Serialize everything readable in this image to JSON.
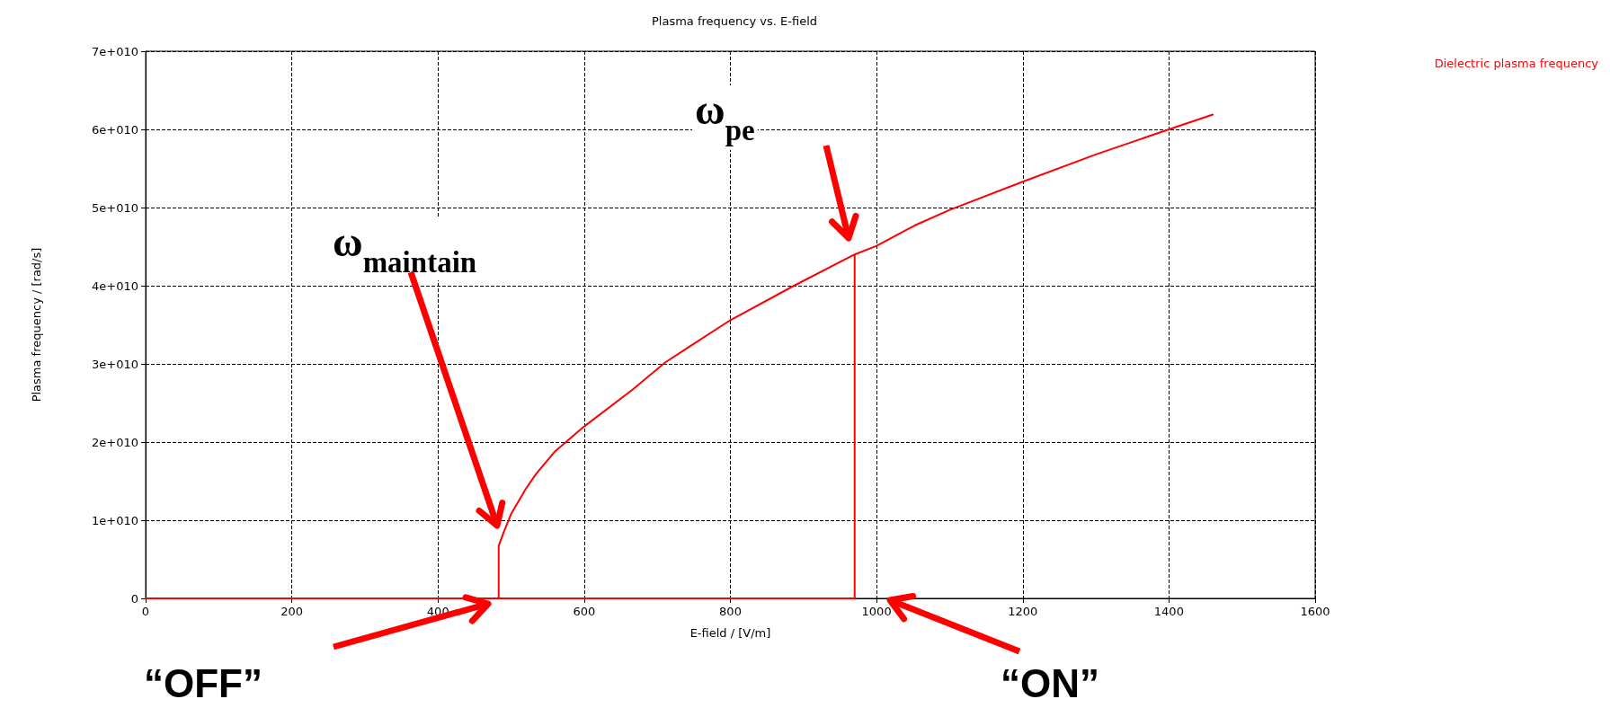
{
  "chart_data": {
    "type": "line",
    "title": "Plasma frequency vs. E-field",
    "xlabel": "E-field / [V/m]",
    "ylabel": "Plasma frequency / [rad/s]",
    "series": [
      {
        "name": "Dielectric plasma frequency",
        "color": "#ff0000",
        "x": [
          0,
          483,
          970,
          970,
          887,
          800,
          711,
          666,
          600,
          560,
          534,
          520,
          500,
          490,
          483,
          483,
          483,
          490,
          500,
          520,
          534,
          560,
          600,
          666,
          711,
          800,
          887,
          970,
          1000,
          1052,
          1100,
          1200,
          1300,
          1400,
          1460
        ],
        "values": [
          0,
          0,
          0,
          44000000000,
          40000000000,
          35600000000,
          30200000000,
          26700000000,
          22000000000,
          18800000000,
          15900000000,
          14000000000,
          10800000000,
          8500000000,
          6700000000,
          0,
          6700000000,
          8500000000,
          10800000000,
          14000000000,
          15900000000,
          18800000000,
          22000000000,
          26700000000,
          30200000000,
          35600000000,
          40000000000,
          44000000000,
          45100000000,
          47700000000,
          49700000000,
          53300000000,
          56800000000,
          60000000000,
          61900000000
        ]
      }
    ],
    "xlim": [
      0,
      1600
    ],
    "xticks": [
      0,
      200,
      400,
      600,
      800,
      1000,
      1200,
      1400,
      1600
    ],
    "ylim": [
      0,
      70000000000
    ],
    "yticks": [
      0,
      {
        "value": 10000000000,
        "label": "1e+010"
      },
      {
        "value": 20000000000,
        "label": "2e+010"
      },
      {
        "value": 30000000000,
        "label": "3e+010"
      },
      {
        "value": 40000000000,
        "label": "4e+010"
      },
      {
        "value": 50000000000,
        "label": "5e+010"
      },
      {
        "value": 60000000000,
        "label": "6e+010"
      },
      {
        "value": 70000000000,
        "label": "7e+010"
      }
    ],
    "grid": true,
    "legend": "top right",
    "marker": "none",
    "line_style": "solid",
    "annotations": [
      "ω$_{maintain}$",
      "ω$_{pe}$",
      "“OFF”",
      "“ON”"
    ]
  }
}
